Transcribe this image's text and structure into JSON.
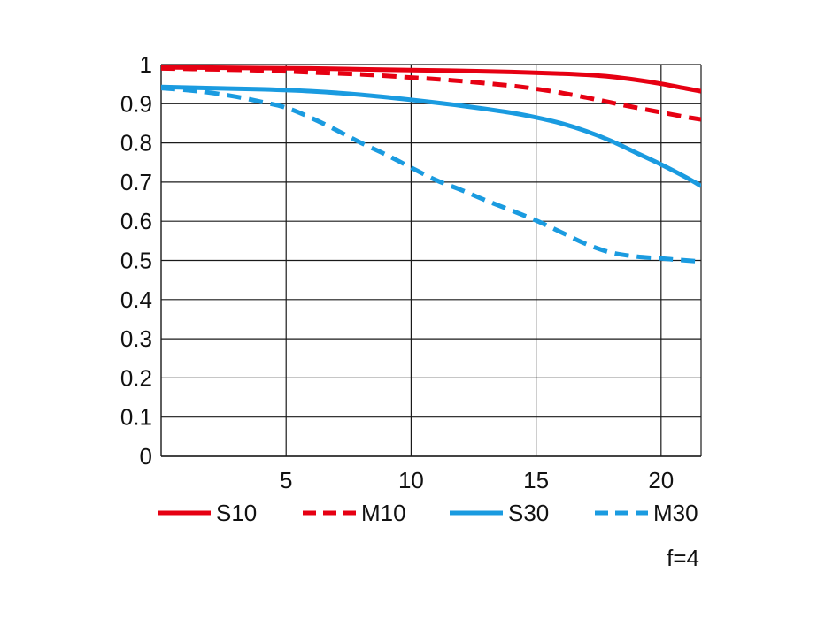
{
  "chart_data": {
    "type": "line",
    "title": "",
    "xlabel": "",
    "ylabel": "",
    "xlim": [
      0,
      21.6
    ],
    "ylim": [
      0,
      1
    ],
    "x_ticks": [
      5,
      10,
      15,
      20
    ],
    "x_tick_labels": [
      "5",
      "10",
      "15",
      "20"
    ],
    "y_ticks": [
      0,
      0.1,
      0.2,
      0.3,
      0.4,
      0.5,
      0.6,
      0.7,
      0.8,
      0.9,
      1
    ],
    "y_tick_labels": [
      "0",
      "0.1",
      "0.2",
      "0.3",
      "0.4",
      "0.5",
      "0.6",
      "0.7",
      "0.8",
      "0.9",
      "1"
    ],
    "grid": true,
    "legend_position": "bottom",
    "annotation": "f=4",
    "series": [
      {
        "name": "S10",
        "color": "#e60012",
        "style": "solid",
        "x": [
          0,
          2,
          4,
          6,
          8,
          10,
          12,
          14,
          16,
          17,
          18,
          19,
          20,
          21,
          21.6
        ],
        "y": [
          0.993,
          0.992,
          0.991,
          0.99,
          0.988,
          0.986,
          0.984,
          0.981,
          0.977,
          0.974,
          0.969,
          0.961,
          0.951,
          0.939,
          0.932
        ]
      },
      {
        "name": "M10",
        "color": "#e60012",
        "style": "dashed",
        "x": [
          0,
          2,
          4,
          6,
          8,
          10,
          12,
          14,
          15,
          16,
          17,
          18,
          19,
          20,
          21,
          21.6
        ],
        "y": [
          0.99,
          0.988,
          0.985,
          0.98,
          0.975,
          0.967,
          0.958,
          0.946,
          0.938,
          0.928,
          0.916,
          0.903,
          0.89,
          0.878,
          0.866,
          0.86
        ]
      },
      {
        "name": "S30",
        "color": "#1a9be0",
        "style": "solid",
        "x": [
          0,
          2,
          4,
          6,
          8,
          10,
          12,
          14,
          15,
          16,
          17,
          18,
          19,
          20,
          21,
          21.6
        ],
        "y": [
          0.943,
          0.94,
          0.937,
          0.932,
          0.923,
          0.91,
          0.895,
          0.877,
          0.865,
          0.85,
          0.83,
          0.805,
          0.775,
          0.745,
          0.712,
          0.69
        ]
      },
      {
        "name": "M30",
        "color": "#1a9be0",
        "style": "dashed",
        "x": [
          0,
          1,
          2,
          3,
          4,
          5,
          6,
          7,
          8,
          9,
          10,
          11,
          12,
          13,
          14,
          15,
          16,
          17,
          18,
          19,
          20,
          21,
          21.6
        ],
        "y": [
          0.94,
          0.935,
          0.928,
          0.918,
          0.905,
          0.89,
          0.864,
          0.833,
          0.8,
          0.77,
          0.737,
          0.705,
          0.68,
          0.653,
          0.628,
          0.602,
          0.572,
          0.542,
          0.52,
          0.51,
          0.505,
          0.5,
          0.497
        ]
      }
    ]
  }
}
